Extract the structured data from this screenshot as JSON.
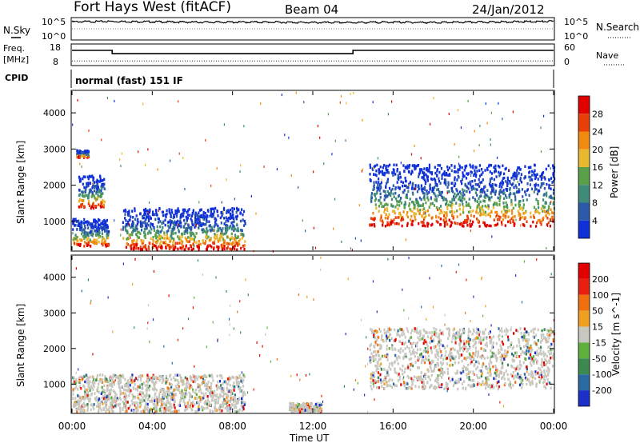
{
  "header": {
    "station": "Fort Hays West (fitACF)",
    "beam": "Beam 04",
    "date": "24/Jan/2012"
  },
  "panels": {
    "noise": {
      "left_label": "N.Sky",
      "right_label": "N.Search",
      "left_ticks": [
        "10^5",
        "10^0"
      ],
      "right_ticks": [
        "10^5",
        "10^0"
      ]
    },
    "freq": {
      "left_label_1": "Freq.",
      "left_label_2": "[MHz]",
      "right_label": "Nave",
      "left_ticks": [
        "18",
        "8"
      ],
      "right_ticks": [
        "60",
        "0"
      ]
    },
    "cpid": {
      "label": "CPID",
      "text": "normal (fast) 151 IF"
    }
  },
  "chart_data": [
    {
      "type": "heatmap",
      "title": "",
      "xlabel": "Time UT",
      "ylabel": "Slant Range [km]",
      "xlim": [
        0,
        24
      ],
      "ylim": [
        200,
        4600
      ],
      "x_tick_labels": [
        "00:00",
        "04:00",
        "08:00",
        "12:00",
        "16:00",
        "20:00",
        "00:00"
      ],
      "y_ticks": [
        1000,
        2000,
        3000,
        4000
      ],
      "colorbar": {
        "label": "Power [dB]",
        "ticks": [
          "4",
          "8",
          "12",
          "16",
          "20",
          "24",
          "28"
        ],
        "colors": [
          "#1030d8",
          "#2d5aa8",
          "#3f8a78",
          "#5aa048",
          "#e8b830",
          "#f08a10",
          "#e84008",
          "#e00000"
        ]
      },
      "features": [
        {
          "time_start": 0.0,
          "time_end": 1.8,
          "range_low": 350,
          "range_high": 1100,
          "note": "strong echoes near range 500"
        },
        {
          "time_start": 0.3,
          "time_end": 1.6,
          "range_low": 1400,
          "range_high": 2300
        },
        {
          "time_start": 0.2,
          "time_end": 0.8,
          "range_low": 2800,
          "range_high": 3000
        },
        {
          "time_start": 2.5,
          "time_end": 8.6,
          "range_low": 250,
          "range_high": 1400
        },
        {
          "time_start": 14.8,
          "time_end": 24.0,
          "range_low": 900,
          "range_high": 2600,
          "note": "red band near 1100–1400"
        }
      ]
    },
    {
      "type": "heatmap",
      "title": "",
      "xlabel": "Time UT",
      "ylabel": "Slant Range [km]",
      "xlim": [
        0,
        24
      ],
      "ylim": [
        200,
        4600
      ],
      "x_tick_labels": [
        "00:00",
        "04:00",
        "08:00",
        "12:00",
        "16:00",
        "20:00",
        "00:00"
      ],
      "y_ticks": [
        1000,
        2000,
        3000,
        4000
      ],
      "colorbar": {
        "label": "Velocity [m s^-1]",
        "ticks": [
          "200",
          "100",
          "50",
          "15",
          "-15",
          "-50",
          "-100",
          "-200"
        ],
        "colors": [
          "#1a30c8",
          "#2a6aa0",
          "#3c8a50",
          "#60b040",
          "#c8c8c0",
          "#f0a020",
          "#f07010",
          "#e82010",
          "#e00000"
        ]
      },
      "features": [
        {
          "time_start": 0.0,
          "time_end": 8.6,
          "range_low": 250,
          "range_high": 1300,
          "note": "mostly ground scatter (grey)"
        },
        {
          "time_start": 14.8,
          "time_end": 24.0,
          "range_low": 900,
          "range_high": 2600,
          "note": "mostly ground scatter (grey)"
        },
        {
          "time_start": 10.8,
          "time_end": 12.4,
          "range_low": 250,
          "range_high": 500,
          "note": "orange patches"
        }
      ]
    }
  ],
  "noise_series": {
    "time": [
      0,
      2,
      4,
      6,
      8,
      10,
      12,
      14,
      16,
      18,
      20,
      22,
      24
    ],
    "n_sky": [
      4.6,
      4.7,
      4.6,
      4.5,
      4.5,
      4.5,
      4.4,
      4.4,
      4.5,
      4.4,
      4.5,
      4.6,
      4.7
    ]
  },
  "freq_series": {
    "time": [
      0,
      2,
      2,
      14,
      14,
      24
    ],
    "freq_mhz": [
      15.5,
      15.5,
      13.8,
      13.8,
      15.5,
      15.5
    ]
  },
  "nave_level": 12
}
